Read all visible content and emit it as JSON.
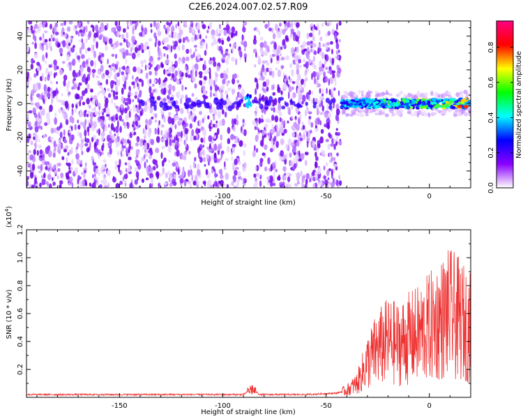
{
  "chart_data": [
    {
      "type": "heatmap",
      "title": "C2E6.2024.007.02.57.R09",
      "xlabel": "Height of straight line (km)",
      "ylabel": "Frequency (Hz)",
      "xlim": [
        -195,
        20
      ],
      "ylim": [
        -50,
        49
      ],
      "xticks": [
        "-150",
        "-100",
        "-50",
        "0"
      ],
      "yticks": [
        "-40",
        "-20",
        "0",
        "20",
        "40"
      ],
      "colorbar": {
        "label": "Normalized spectral amplitude",
        "range": [
          0,
          0.95
        ],
        "ticks": [
          "0.0",
          "0.2",
          "0.4",
          "0.6",
          "0.8"
        ],
        "colors": [
          "#ffffff",
          "#8a00ff",
          "#0000ff",
          "#00ffff",
          "#00ff00",
          "#ffff00",
          "#ff0000",
          "#ff0080"
        ]
      },
      "features": [
        {
          "x_range": [
            -195,
            -43
          ],
          "description": "speckled purple noise across all frequencies"
        },
        {
          "x_range": [
            -89,
            -85
          ],
          "description": "narrow empty gap"
        },
        {
          "x_range": [
            -43,
            20
          ],
          "frequency": 0,
          "description": "bright band near 0 Hz with red peaks"
        }
      ]
    },
    {
      "type": "line",
      "xlabel": "Height of straight line (km)",
      "ylabel": "SNR (10 * v/v)",
      "yscale_label": "(x10",
      "yscale_exp": "4",
      "yscale_close": ")",
      "xlim": [
        -195,
        20
      ],
      "ylim": [
        0,
        1.2
      ],
      "xticks": [
        "-150",
        "-100",
        "-50",
        "0"
      ],
      "yticks": [
        "0.2",
        "0.4",
        "0.6",
        "0.8",
        "1.0",
        "1.2"
      ],
      "series_color": "#ee3333",
      "x": [
        -195,
        -150,
        -100,
        -90,
        -86,
        -82,
        -60,
        -45,
        -40,
        -35,
        -30,
        -25,
        -20,
        -15,
        -10,
        -5,
        0,
        5,
        10,
        15,
        20
      ],
      "y": [
        0.02,
        0.02,
        0.02,
        0.02,
        0.06,
        0.02,
        0.02,
        0.03,
        0.05,
        0.1,
        0.25,
        0.35,
        0.4,
        0.38,
        0.42,
        0.45,
        0.5,
        0.55,
        0.6,
        0.55,
        0.5
      ]
    }
  ]
}
